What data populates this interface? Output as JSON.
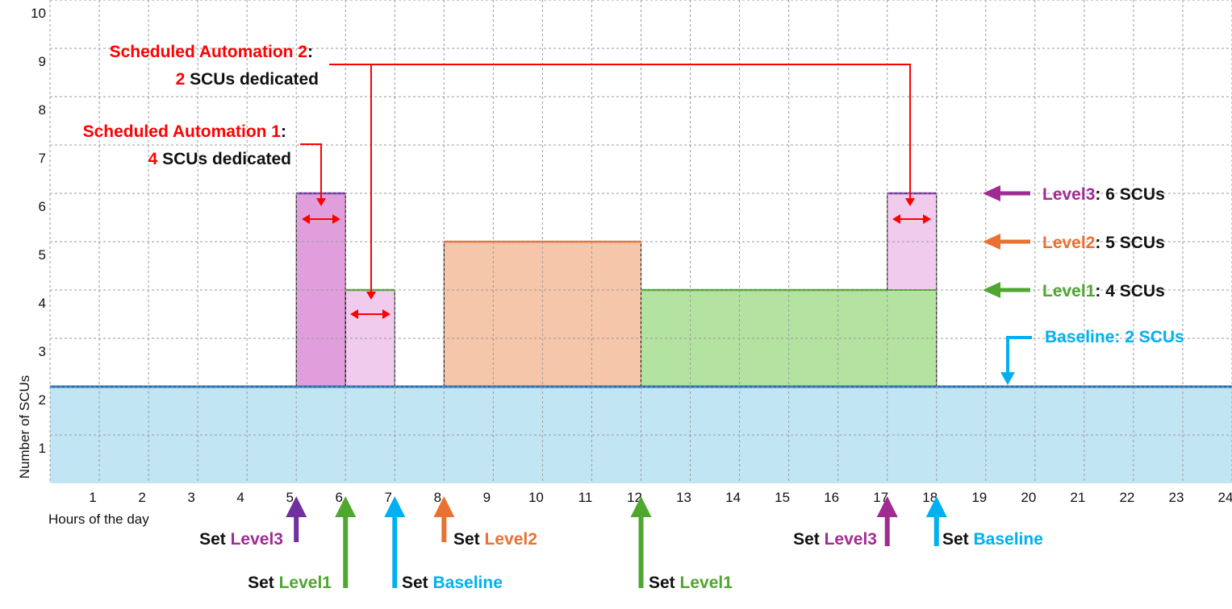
{
  "chart_data": {
    "type": "area",
    "xlabel": "Hours of the day",
    "ylabel": "Number of SCUs",
    "x_ticks": [
      "1",
      "2",
      "3",
      "4",
      "5",
      "6",
      "7",
      "8",
      "9",
      "10",
      "11",
      "12",
      "13",
      "14",
      "15",
      "16",
      "17",
      "18",
      "19",
      "20",
      "21",
      "22",
      "23",
      "24"
    ],
    "y_ticks": [
      "1",
      "2",
      "3",
      "4",
      "5",
      "6",
      "7",
      "8",
      "9",
      "10"
    ],
    "xlim": [
      0,
      24
    ],
    "ylim": [
      0,
      10
    ],
    "grid": true,
    "colors": {
      "baseline_fill": "#c2e5f4",
      "baseline_line": "#1e6fb5",
      "level1_fill": "#b4e3a1",
      "level1_line": "#4ea72e",
      "level2_fill": "#f5c6a9",
      "level2_line": "#e97132",
      "level3_fill": "#e09fdc",
      "level3_line": "#7030a0",
      "scheduled_fill": "#f1cbed",
      "arrow_red": "#ff0000",
      "arrow_purple": "#7030a0",
      "arrow_purple2": "#a02b93",
      "arrow_green": "#4ea72e",
      "arrow_orange": "#e97132",
      "arrow_blue": "#00b0f0",
      "text_dark": "#111111"
    },
    "series": [
      {
        "name": "Baseline",
        "segments": [
          {
            "x0": 0,
            "x1": 24,
            "value": 2
          }
        ]
      },
      {
        "name": "Level3",
        "segments": [
          {
            "x0": 5,
            "x1": 6,
            "value": 6
          }
        ]
      },
      {
        "name": "Scheduled Automation 1",
        "segments": [
          {
            "x0": 6,
            "x1": 7,
            "value": 4
          }
        ]
      },
      {
        "name": "Level2",
        "segments": [
          {
            "x0": 8,
            "x1": 12,
            "value": 5
          }
        ]
      },
      {
        "name": "Level1",
        "segments": [
          {
            "x0": 12,
            "x1": 18,
            "value": 4
          }
        ]
      },
      {
        "name": "Scheduled Automation 2",
        "segments": [
          {
            "x0": 17,
            "x1": 18,
            "value": 6
          }
        ]
      }
    ],
    "annotations": {
      "sched1_title": "Scheduled Automation 1",
      "sched1_colon": ":",
      "sched1_count": "4",
      "sched1_rest": " SCUs dedicated",
      "sched2_title": "Scheduled Automation 2",
      "sched2_colon": ":",
      "sched2_count": "2",
      "sched2_rest": " SCUs dedicated",
      "legend_level3_name": "Level3",
      "legend_level3_rest": ": 6 SCUs",
      "legend_level2_name": "Level2",
      "legend_level2_rest": ": 5 SCUs",
      "legend_level1_name": "Level1",
      "legend_level1_rest": ": 4 SCUs",
      "legend_baseline": "Baseline: 2 SCUs",
      "set_word": "Set ",
      "set_level3_a": "Level3",
      "set_level1_a": "Level1",
      "set_baseline_a": "Baseline",
      "set_level2": "Level2",
      "set_level1_b": "Level1",
      "set_level3_b": "Level3",
      "set_baseline_b": "Baseline"
    }
  }
}
